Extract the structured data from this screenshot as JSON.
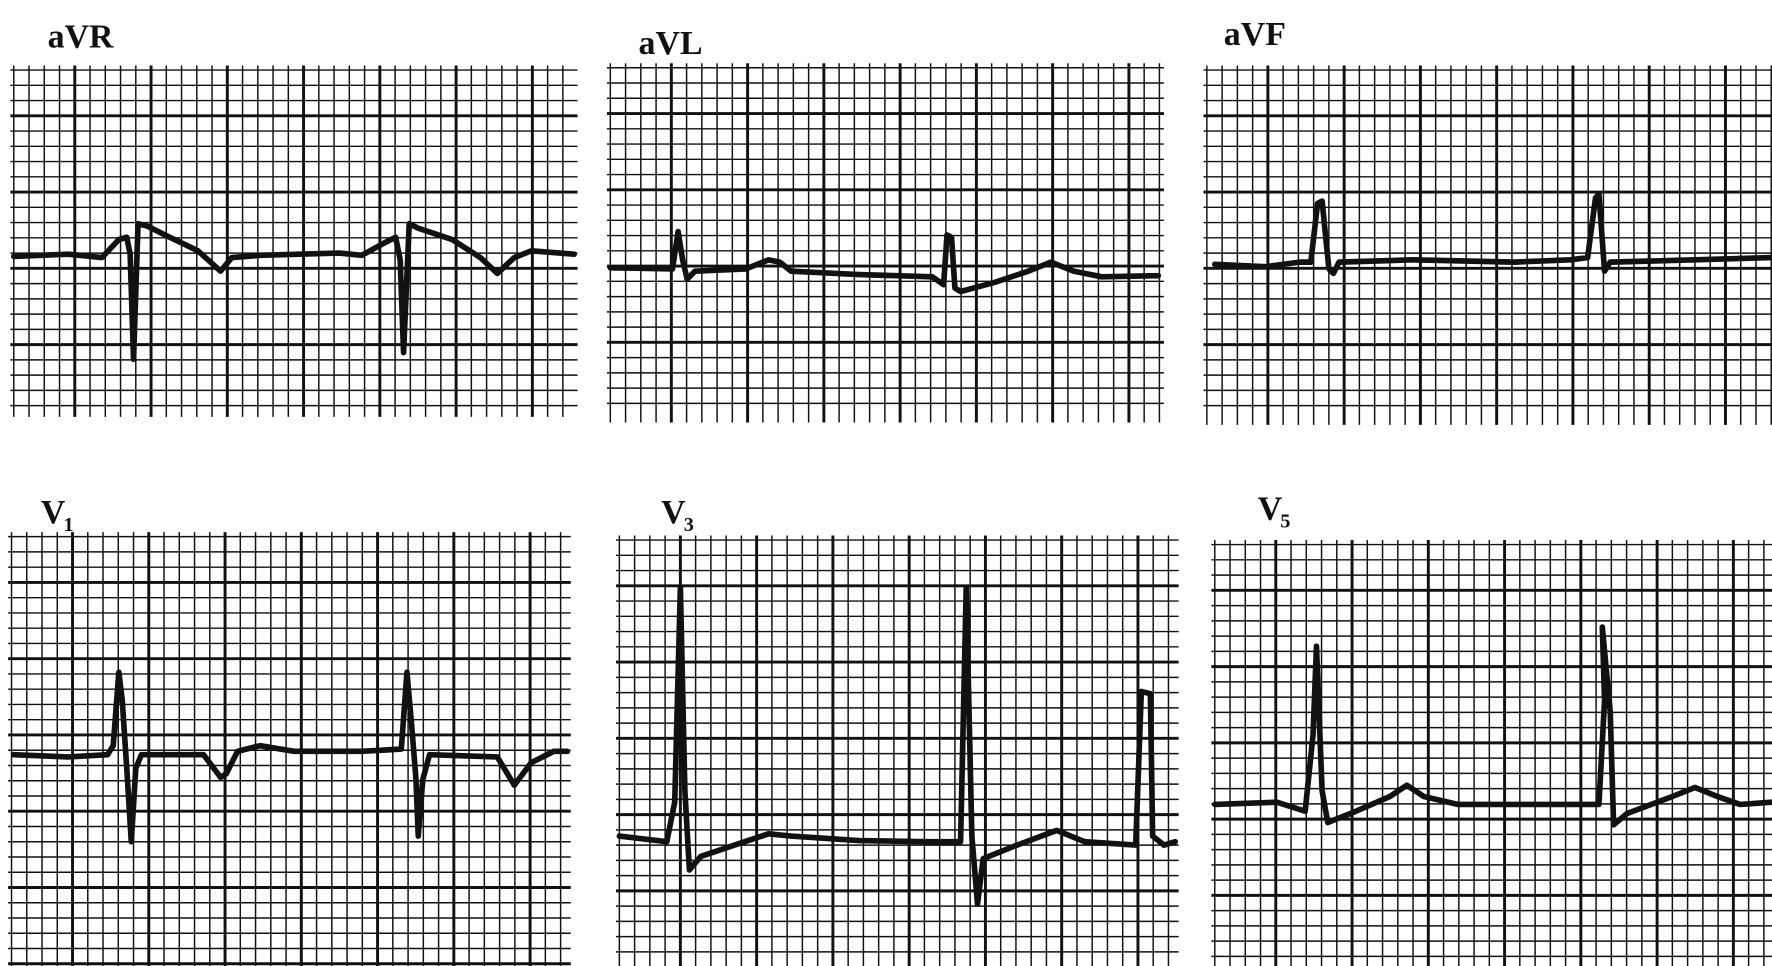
{
  "colors": {
    "grid": "#111111",
    "trace": "#111111",
    "paper": "#ffffff"
  },
  "leads": [
    {
      "name": "aVR",
      "sub": ""
    },
    {
      "name": "aVL",
      "sub": ""
    },
    {
      "name": "aVF",
      "sub": ""
    },
    {
      "name": "V",
      "sub": "1"
    },
    {
      "name": "V",
      "sub": "3"
    },
    {
      "name": "V",
      "sub": "5"
    }
  ]
}
